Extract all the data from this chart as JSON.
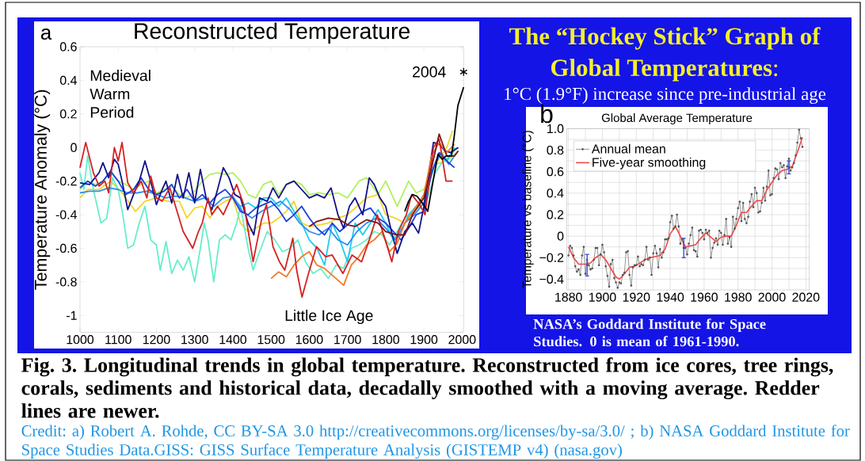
{
  "chart_data": [
    {
      "type": "line",
      "title": "Reconstructed Temperature",
      "ylabel": "Temperature Anomaly (°C)",
      "xlim": [
        1000,
        2004
      ],
      "xticks": [
        1000,
        1100,
        1200,
        1300,
        1400,
        1500,
        1600,
        1700,
        1800,
        1900,
        2000
      ],
      "ylim": [
        -1.1,
        0.6
      ],
      "yticks": [
        -1,
        -0.8,
        -0.6,
        -0.4,
        -0.2,
        0,
        0.2,
        0.4,
        0.6
      ],
      "annotations": [
        "a",
        "Medieval Warm Period",
        "Little Ice Age",
        "2004",
        "Fig. 3. Longitudinal trends in global temperature. Reconstructed from ice cores, tree rings, corals, sediments and historical data, decadally smoothed with a moving average. Redder lines are newer.",
        "Credit: a) Robert A. Rohde, CC BY-SA 3.0 http://creativecommons.org/licenses/by-sa/3.0/ ; b) NASA Goddard Institute for Space Studies Data.GISS: GISS Surface Temperature Analysis (GISTEMP v4) (nasa.gov)"
      ],
      "series": [
        {
          "color": "#b2f060",
          "x": [
            1000,
            1020,
            1040,
            1060,
            1080,
            1100,
            1120,
            1140,
            1160,
            1180,
            1200,
            1220,
            1240,
            1260,
            1280,
            1300,
            1320,
            1340,
            1360,
            1380,
            1400,
            1420,
            1440,
            1460,
            1480,
            1500,
            1520,
            1540,
            1560,
            1580,
            1600,
            1625,
            1650,
            1675,
            1700,
            1730,
            1750,
            1780,
            1800,
            1830,
            1860,
            1880,
            1900,
            1930,
            1960,
            1990
          ],
          "values": [
            -0.25,
            -0.2,
            -0.22,
            -0.2,
            -0.15,
            -0.2,
            -0.22,
            -0.25,
            -0.22,
            -0.2,
            -0.27,
            -0.25,
            -0.23,
            -0.28,
            -0.3,
            -0.26,
            -0.2,
            -0.16,
            -0.15,
            -0.16,
            -0.15,
            -0.2,
            -0.28,
            -0.3,
            -0.22,
            -0.2,
            -0.28,
            -0.22,
            -0.2,
            -0.22,
            -0.28,
            -0.27,
            -0.28,
            -0.27,
            -0.3,
            -0.2,
            -0.18,
            -0.28,
            -0.2,
            -0.35,
            -0.2,
            -0.27,
            -0.25,
            -0.1,
            -0.08,
            -0.02
          ]
        },
        {
          "color": "#f5d52a",
          "x": [
            1000,
            1020,
            1050,
            1080,
            1110,
            1145,
            1170,
            1200,
            1230,
            1260,
            1280,
            1300,
            1320,
            1340,
            1360,
            1380,
            1400,
            1420,
            1440,
            1460,
            1480,
            1500,
            1520,
            1540,
            1560,
            1580,
            1600,
            1625,
            1650,
            1675,
            1700,
            1725,
            1750,
            1780,
            1800,
            1825,
            1850,
            1875,
            1900,
            1930,
            1960,
            1975
          ],
          "values": [
            -0.3,
            -0.25,
            -0.25,
            -0.2,
            -0.27,
            -0.38,
            -0.32,
            -0.3,
            -0.32,
            -0.32,
            -0.42,
            -0.36,
            -0.35,
            -0.42,
            -0.35,
            -0.32,
            -0.3,
            -0.45,
            -0.5,
            -0.48,
            -0.45,
            -0.45,
            -0.42,
            -0.38,
            -0.32,
            -0.45,
            -0.47,
            -0.46,
            -0.45,
            -0.42,
            -0.4,
            -0.35,
            -0.3,
            -0.28,
            -0.4,
            -0.42,
            -0.45,
            -0.38,
            -0.3,
            -0.1,
            0.0,
            0.1
          ]
        },
        {
          "color": "#66eecc",
          "x": [
            1000,
            1010,
            1020,
            1035,
            1055,
            1070,
            1085,
            1100,
            1112,
            1125,
            1140,
            1155,
            1170,
            1185,
            1200,
            1210,
            1225,
            1240,
            1255,
            1270,
            1285,
            1300,
            1315,
            1325,
            1335,
            1350,
            1365,
            1380,
            1395,
            1410,
            1420,
            1440,
            1453,
            1470,
            1490,
            1510,
            1530,
            1550,
            1570,
            1590,
            1610,
            1630,
            1650,
            1670,
            1690,
            1710,
            1730,
            1750,
            1770,
            1790,
            1810,
            1830,
            1850,
            1870,
            1890,
            1910,
            1930,
            1950,
            1970,
            1985
          ],
          "values": [
            -0.15,
            -0.25,
            -0.05,
            -0.25,
            -0.45,
            -0.42,
            -0.18,
            -0.25,
            -0.4,
            -0.6,
            -0.58,
            -0.45,
            -0.35,
            -0.55,
            -0.58,
            -0.73,
            -0.56,
            -0.75,
            -0.67,
            -0.73,
            -0.65,
            -0.8,
            -0.6,
            -0.45,
            -0.55,
            -0.8,
            -0.55,
            -0.52,
            -0.55,
            -0.45,
            -0.35,
            -0.6,
            -0.73,
            -0.62,
            -0.5,
            -0.55,
            -0.62,
            -0.6,
            -0.55,
            -0.68,
            -0.75,
            -0.72,
            -0.78,
            -0.7,
            -0.72,
            -0.6,
            -0.58,
            -0.55,
            -0.5,
            -0.52,
            -0.58,
            -0.5,
            -0.42,
            -0.38,
            -0.35,
            -0.3,
            -0.15,
            -0.08,
            -0.05,
            0.0
          ]
        },
        {
          "color": "#22ccee",
          "x": [
            1400,
            1420,
            1440,
            1460,
            1480,
            1500,
            1520,
            1540,
            1560,
            1580,
            1600,
            1620,
            1640,
            1660,
            1680,
            1700,
            1720,
            1740,
            1760,
            1780,
            1800,
            1820,
            1840,
            1860,
            1880,
            1900,
            1920,
            1940,
            1960,
            1980
          ],
          "values": [
            -0.3,
            -0.35,
            -0.33,
            -0.36,
            -0.3,
            -0.3,
            -0.35,
            -0.3,
            -0.38,
            -0.45,
            -0.55,
            -0.6,
            -0.7,
            -0.45,
            -0.55,
            -0.68,
            -0.45,
            -0.52,
            -0.45,
            -0.37,
            -0.45,
            -0.55,
            -0.5,
            -0.4,
            -0.35,
            -0.3,
            -0.15,
            -0.05,
            -0.08,
            0.0
          ]
        },
        {
          "color": "#2f8ff0",
          "x": [
            1000,
            1025,
            1050,
            1075,
            1100,
            1125,
            1150,
            1175,
            1200,
            1225,
            1250,
            1275,
            1300,
            1325,
            1350,
            1375,
            1400,
            1425,
            1450,
            1475,
            1500,
            1525,
            1550,
            1575,
            1600,
            1625,
            1650,
            1675,
            1700,
            1725,
            1750,
            1775,
            1800,
            1825,
            1850,
            1875,
            1900,
            1925,
            1945,
            1965,
            1980
          ],
          "values": [
            -0.27,
            -0.26,
            -0.26,
            -0.24,
            -0.25,
            -0.27,
            -0.27,
            -0.26,
            -0.28,
            -0.3,
            -0.29,
            -0.3,
            -0.32,
            -0.3,
            -0.35,
            -0.3,
            -0.29,
            -0.38,
            -0.42,
            -0.38,
            -0.35,
            -0.32,
            -0.37,
            -0.45,
            -0.5,
            -0.52,
            -0.48,
            -0.55,
            -0.58,
            -0.5,
            -0.45,
            -0.42,
            -0.48,
            -0.55,
            -0.45,
            -0.4,
            -0.33,
            -0.12,
            -0.03,
            -0.1,
            -0.05
          ]
        },
        {
          "color": "#1f3fe0",
          "x": [
            1000,
            1020,
            1040,
            1060,
            1080,
            1100,
            1120,
            1140,
            1160,
            1180,
            1200,
            1220,
            1240,
            1260,
            1280,
            1300,
            1320,
            1340,
            1360,
            1380,
            1400,
            1420,
            1440,
            1460,
            1480,
            1500,
            1520,
            1540,
            1560,
            1580,
            1600,
            1620,
            1640,
            1660,
            1680,
            1700,
            1720,
            1740,
            1760,
            1780,
            1800,
            1820,
            1840,
            1860,
            1880,
            1900,
            1920,
            1940,
            1960,
            1980
          ],
          "values": [
            -0.24,
            -0.2,
            -0.23,
            -0.2,
            -0.14,
            -0.2,
            -0.28,
            -0.25,
            -0.18,
            -0.25,
            -0.28,
            -0.26,
            -0.22,
            -0.3,
            -0.25,
            -0.32,
            -0.28,
            -0.33,
            -0.28,
            -0.25,
            -0.3,
            -0.38,
            -0.4,
            -0.36,
            -0.34,
            -0.32,
            -0.37,
            -0.44,
            -0.4,
            -0.35,
            -0.42,
            -0.48,
            -0.52,
            -0.45,
            -0.5,
            -0.46,
            -0.42,
            -0.38,
            -0.36,
            -0.42,
            -0.45,
            -0.5,
            -0.55,
            -0.48,
            -0.4,
            -0.38,
            -0.15,
            -0.03,
            -0.08,
            -0.12
          ]
        },
        {
          "color": "#12128a",
          "x": [
            1000,
            1025,
            1050,
            1060,
            1075,
            1090,
            1100,
            1110,
            1125,
            1140,
            1155,
            1170,
            1185,
            1200,
            1215,
            1225,
            1240,
            1255,
            1270,
            1285,
            1300,
            1315,
            1330,
            1345,
            1360,
            1375,
            1390,
            1405,
            1420,
            1440,
            1455,
            1470,
            1490,
            1505,
            1520,
            1540,
            1560,
            1580,
            1600,
            1620,
            1640,
            1657,
            1675,
            1690,
            1705,
            1720,
            1740,
            1757,
            1770,
            1785,
            1800,
            1815,
            1830,
            1850,
            1870,
            1886,
            1900,
            1915,
            1925,
            1940,
            1955,
            1970,
            1990
          ],
          "values": [
            -0.21,
            -0.22,
            -0.15,
            -0.09,
            -0.18,
            -0.07,
            -0.1,
            -0.2,
            -0.37,
            -0.28,
            -0.2,
            -0.08,
            -0.2,
            -0.34,
            -0.25,
            -0.2,
            -0.33,
            -0.16,
            -0.3,
            -0.15,
            -0.33,
            -0.13,
            -0.3,
            -0.37,
            -0.25,
            -0.12,
            -0.18,
            -0.28,
            -0.3,
            -0.45,
            -0.52,
            -0.3,
            -0.32,
            -0.24,
            -0.3,
            -0.22,
            -0.2,
            -0.25,
            -0.3,
            -0.28,
            -0.3,
            -0.24,
            -0.4,
            -0.48,
            -0.35,
            -0.3,
            -0.4,
            -0.18,
            -0.22,
            -0.3,
            -0.35,
            -0.5,
            -0.63,
            -0.5,
            -0.45,
            -0.51,
            -0.35,
            -0.12,
            0.03,
            0.02,
            -0.02,
            -0.03,
            0.0
          ]
        },
        {
          "color": "#f27a2a",
          "x": [
            1500,
            1510,
            1520,
            1540,
            1560,
            1580,
            1600,
            1620,
            1640,
            1670,
            1690,
            1710,
            1730,
            1750,
            1770,
            1790,
            1810,
            1830,
            1850,
            1880,
            1900,
            1920,
            1940,
            1960,
            1980
          ],
          "values": [
            -0.78,
            -0.76,
            -0.74,
            -0.77,
            -0.7,
            -0.65,
            -0.62,
            -0.7,
            -0.72,
            -0.78,
            -0.82,
            -0.7,
            -0.65,
            -0.58,
            -0.55,
            -0.5,
            -0.62,
            -0.57,
            -0.45,
            -0.35,
            -0.28,
            -0.05,
            0.03,
            -0.03,
            0.02
          ]
        },
        {
          "color": "#d42222",
          "x": [
            1000,
            1015,
            1035,
            1050,
            1065,
            1075,
            1090,
            1100,
            1110,
            1125,
            1140,
            1160,
            1175,
            1185,
            1200,
            1215,
            1235,
            1250,
            1270,
            1295,
            1310,
            1320,
            1335,
            1345,
            1360,
            1375,
            1395,
            1410,
            1430,
            1453,
            1475,
            1488,
            1505,
            1522,
            1536,
            1557,
            1567,
            1581,
            1598,
            1619,
            1643,
            1660,
            1688,
            1712,
            1737,
            1757,
            1778,
            1799,
            1816,
            1833,
            1854,
            1868,
            1889,
            1903,
            1925,
            1940,
            1958,
            1975
          ],
          "values": [
            -0.12,
            0.03,
            -0.15,
            -0.23,
            -0.2,
            -0.27,
            0.0,
            -0.08,
            0.03,
            -0.21,
            -0.27,
            -0.2,
            -0.3,
            -0.17,
            -0.3,
            -0.32,
            -0.24,
            -0.35,
            -0.5,
            -0.6,
            -0.5,
            -0.45,
            -0.3,
            -0.4,
            -0.35,
            -0.4,
            -0.3,
            -0.22,
            -0.35,
            -0.68,
            -0.43,
            -0.34,
            -0.59,
            -0.68,
            -0.73,
            -0.54,
            -0.73,
            -0.89,
            -0.75,
            -0.59,
            -0.65,
            -0.64,
            -0.75,
            -0.64,
            -0.68,
            -0.55,
            -0.4,
            -0.55,
            -0.68,
            -0.5,
            -0.4,
            -0.28,
            -0.34,
            -0.4,
            0.0,
            0.05,
            -0.2,
            -0.2
          ]
        },
        {
          "color": "#7e1414",
          "x": [
            1600,
            1620,
            1650,
            1680,
            1700,
            1720,
            1750,
            1780,
            1800,
            1830,
            1850,
            1870,
            1900,
            1920,
            1940,
            1960,
            1980,
            1990
          ],
          "values": [
            -0.47,
            -0.44,
            -0.42,
            -0.43,
            -0.46,
            -0.47,
            -0.43,
            -0.45,
            -0.5,
            -0.52,
            -0.52,
            -0.4,
            -0.3,
            -0.12,
            0.08,
            -0.05,
            -0.05,
            -0.02
          ]
        },
        {
          "color": "#000000",
          "x": [
            1850,
            1860,
            1870,
            1882,
            1896,
            1910,
            1924,
            1937,
            1948,
            1958,
            1972,
            1979,
            1989,
            2004
          ],
          "values": [
            -0.38,
            -0.32,
            -0.28,
            -0.29,
            -0.33,
            -0.38,
            -0.2,
            -0.04,
            -0.07,
            -0.05,
            -0.05,
            0.06,
            0.25,
            0.36
          ]
        },
        {
          "type": "scatter",
          "color": "#000000",
          "marker": "cross",
          "x": [
            2004
          ],
          "values": [
            0.45
          ]
        }
      ]
    },
    {
      "type": "line",
      "title": "Global Average Temperature",
      "ylabel": "Temperature vs baseline (°C)",
      "xlim": [
        1879,
        2022
      ],
      "xticks": [
        1880,
        {
          "value": 1890,
          "label": null
        },
        1900,
        {
          "value": 1910,
          "label": null
        },
        1920,
        {
          "value": 1930,
          "label": null
        },
        1940,
        {
          "value": 1950,
          "label": null
        },
        1960,
        {
          "value": 1970,
          "label": null
        },
        1980,
        {
          "value": 1990,
          "label": null
        },
        2000,
        {
          "value": 2010,
          "label": null
        },
        2020
      ],
      "ylim": [
        -0.5,
        1.0
      ],
      "yticks": [
        {
          "value": -0.4,
          "label": "−0.4"
        },
        {
          "value": -0.3,
          "label": null
        },
        {
          "value": -0.2,
          "label": "−0.2"
        },
        {
          "value": -0.1,
          "label": null
        },
        0,
        {
          "value": 0.1,
          "label": null
        },
        0.2,
        {
          "value": 0.3,
          "label": null
        },
        0.4,
        {
          "value": 0.5,
          "label": null
        },
        0.6,
        {
          "value": 0.7,
          "label": null
        },
        0.8,
        {
          "value": 0.9,
          "label": null
        },
        {
          "value": 1.0,
          "label": "1.0"
        }
      ],
      "grid": true,
      "legend": "top left",
      "annotations": [
        "b",
        "**The “Hockey Stick” Graph of Global Temperatures**:",
        "1°C (1.9°F) increase since pre-industrial age",
        "NASA’s Goddard Institute for Space Studies. 0 is mean of 1961-1990."
      ],
      "series": [
        {
          "name": "Annual mean",
          "color": "#505050",
          "marker": "circle",
          "x": [
            1880,
            1881,
            1882,
            1883,
            1884,
            1885,
            1886,
            1887,
            1888,
            1889,
            1890,
            1891,
            1892,
            1893,
            1894,
            1895,
            1896,
            1897,
            1898,
            1899,
            1900,
            1901,
            1902,
            1903,
            1904,
            1905,
            1906,
            1907,
            1908,
            1909,
            1910,
            1911,
            1912,
            1913,
            1914,
            1915,
            1916,
            1917,
            1918,
            1919,
            1920,
            1921,
            1922,
            1923,
            1924,
            1925,
            1926,
            1927,
            1928,
            1929,
            1930,
            1931,
            1932,
            1933,
            1934,
            1935,
            1936,
            1937,
            1938,
            1939,
            1940,
            1941,
            1942,
            1943,
            1944,
            1945,
            1946,
            1947,
            1948,
            1949,
            1950,
            1951,
            1952,
            1953,
            1954,
            1955,
            1956,
            1957,
            1958,
            1959,
            1960,
            1961,
            1962,
            1963,
            1964,
            1965,
            1966,
            1967,
            1968,
            1969,
            1970,
            1971,
            1972,
            1973,
            1974,
            1975,
            1976,
            1977,
            1978,
            1979,
            1980,
            1981,
            1982,
            1983,
            1984,
            1985,
            1986,
            1987,
            1988,
            1989,
            1990,
            1991,
            1992,
            1993,
            1994,
            1995,
            1996,
            1997,
            1998,
            1999,
            2000,
            2001,
            2002,
            2003,
            2004,
            2005,
            2006,
            2007,
            2008,
            2009,
            2010,
            2011,
            2012,
            2013,
            2014,
            2015,
            2016,
            2017,
            2018
          ],
          "values": [
            -0.18,
            -0.09,
            -0.11,
            -0.18,
            -0.28,
            -0.33,
            -0.31,
            -0.36,
            -0.18,
            -0.1,
            -0.35,
            -0.22,
            -0.27,
            -0.31,
            -0.3,
            -0.22,
            -0.11,
            -0.11,
            -0.27,
            -0.17,
            -0.08,
            -0.15,
            -0.28,
            -0.37,
            -0.47,
            -0.26,
            -0.22,
            -0.39,
            -0.43,
            -0.48,
            -0.43,
            -0.44,
            -0.36,
            -0.34,
            -0.15,
            -0.14,
            -0.36,
            -0.46,
            -0.29,
            -0.27,
            -0.27,
            -0.19,
            -0.28,
            -0.26,
            -0.27,
            -0.22,
            -0.1,
            -0.22,
            -0.2,
            -0.36,
            -0.16,
            -0.09,
            -0.16,
            -0.29,
            -0.12,
            -0.2,
            -0.15,
            -0.03,
            -0.03,
            -0.02,
            0.13,
            0.19,
            0.07,
            0.09,
            0.2,
            0.09,
            -0.07,
            -0.03,
            -0.11,
            -0.11,
            -0.17,
            -0.07,
            0.01,
            0.08,
            -0.13,
            -0.14,
            -0.19,
            0.05,
            0.06,
            0.03,
            -0.03,
            0.06,
            0.03,
            0.05,
            -0.2,
            -0.11,
            -0.06,
            -0.02,
            -0.08,
            0.05,
            0.03,
            -0.08,
            0.01,
            0.16,
            -0.07,
            -0.01,
            -0.1,
            0.18,
            0.07,
            0.16,
            0.26,
            0.32,
            0.14,
            0.31,
            0.16,
            0.12,
            0.18,
            0.32,
            0.39,
            0.27,
            0.45,
            0.4,
            0.22,
            0.23,
            0.31,
            0.45,
            0.33,
            0.46,
            0.61,
            0.38,
            0.39,
            0.54,
            0.63,
            0.62,
            0.53,
            0.68,
            0.64,
            0.66,
            0.54,
            0.65,
            0.72,
            0.61,
            0.64,
            0.68,
            0.75,
            0.87,
            0.99,
            0.91,
            0.83
          ]
        },
        {
          "name": "Five-year smoothing",
          "color": "#f04848",
          "x": [
            1880,
            1883,
            1886,
            1890,
            1893,
            1896,
            1899,
            1902,
            1905,
            1908,
            1910,
            1913,
            1916,
            1919,
            1922,
            1925,
            1928,
            1931,
            1934,
            1937,
            1940,
            1943,
            1946,
            1949,
            1952,
            1955,
            1958,
            1961,
            1964,
            1967,
            1970,
            1973,
            1976,
            1979,
            1982,
            1985,
            1988,
            1991,
            1994,
            1997,
            2000,
            2003,
            2006,
            2009,
            2012,
            2015,
            2018
          ],
          "values": [
            -0.1,
            -0.2,
            -0.26,
            -0.26,
            -0.25,
            -0.2,
            -0.17,
            -0.22,
            -0.3,
            -0.38,
            -0.4,
            -0.35,
            -0.29,
            -0.28,
            -0.25,
            -0.22,
            -0.2,
            -0.19,
            -0.18,
            -0.12,
            0.02,
            0.09,
            0.0,
            -0.1,
            -0.09,
            -0.08,
            -0.02,
            0.03,
            -0.01,
            -0.05,
            -0.01,
            0.0,
            0.0,
            0.1,
            0.22,
            0.22,
            0.28,
            0.33,
            0.33,
            0.43,
            0.5,
            0.57,
            0.61,
            0.62,
            0.65,
            0.78,
            0.92
          ]
        },
        {
          "type": "scatter",
          "color": "#3344dd",
          "marker": "circle",
          "x": [
            1891,
            1948,
            2010
          ],
          "values": [
            -0.27,
            -0.11,
            0.64
          ],
          "errors": [
            0.1,
            0.09,
            0.06
          ]
        }
      ]
    }
  ]
}
